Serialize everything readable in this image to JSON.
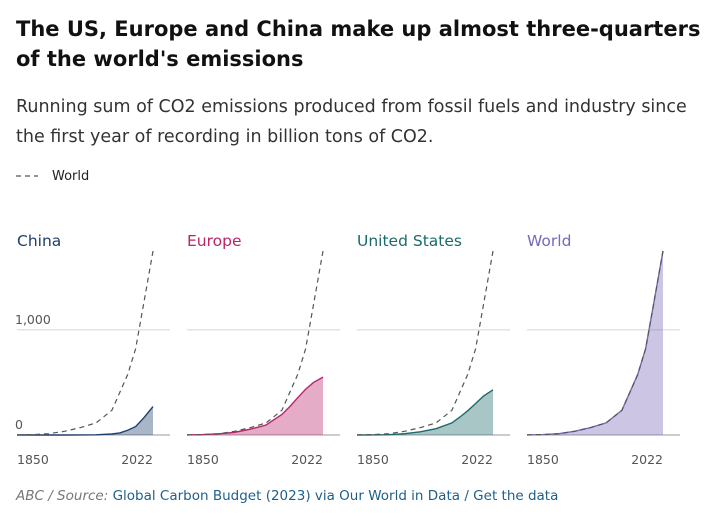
{
  "title": "The US, Europe and China make up almost three-quarters of the world's emissions",
  "subtitle": "Running sum of CO2 emissions produced from fossil fuels and industry since the first year of recording in billion tons of CO2.",
  "legend": {
    "dashed_label": "World"
  },
  "source": {
    "prefix": "ABC / Source:",
    "link": "Global Carbon Budget (2023) via Our World in Data",
    "separator": "/",
    "get_data": "Get the data"
  },
  "colors": {
    "China": "#1e3f6e",
    "Europe": "#b8266a",
    "United States": "#1d6a6b",
    "World": "#7a68b8"
  },
  "chart_data": {
    "type": "area",
    "title": "The US, Europe and China make up almost three-quarters of the world's emissions",
    "xlabel": "",
    "ylabel": "",
    "xlim": [
      1850,
      2022
    ],
    "ylim": [
      0,
      1750
    ],
    "x_ticks": [
      "1850",
      "2022"
    ],
    "y_ticks": [
      {
        "value": 0,
        "label": "0"
      },
      {
        "value": 1000,
        "label": "1,000"
      }
    ],
    "grid": true,
    "x": [
      1850,
      1870,
      1890,
      1910,
      1930,
      1950,
      1970,
      1980,
      1990,
      2000,
      2010,
      2022
    ],
    "reference_series": {
      "name": "World",
      "values": [
        1,
        4,
        12,
        35,
        70,
        115,
        235,
        405,
        575,
        820,
        1240,
        1750
      ]
    },
    "panels": [
      {
        "name": "China",
        "values": [
          0,
          0,
          0,
          0,
          1,
          2,
          10,
          20,
          45,
          80,
          160,
          270
        ]
      },
      {
        "name": "Europe",
        "values": [
          1,
          4,
          11,
          25,
          55,
          95,
          195,
          270,
          355,
          435,
          500,
          550
        ]
      },
      {
        "name": "United States",
        "values": [
          0,
          1,
          3,
          12,
          30,
          60,
          115,
          170,
          230,
          300,
          370,
          430
        ]
      },
      {
        "name": "World",
        "values": [
          1,
          4,
          12,
          35,
          70,
          115,
          235,
          405,
          575,
          820,
          1240,
          1750
        ]
      }
    ]
  }
}
